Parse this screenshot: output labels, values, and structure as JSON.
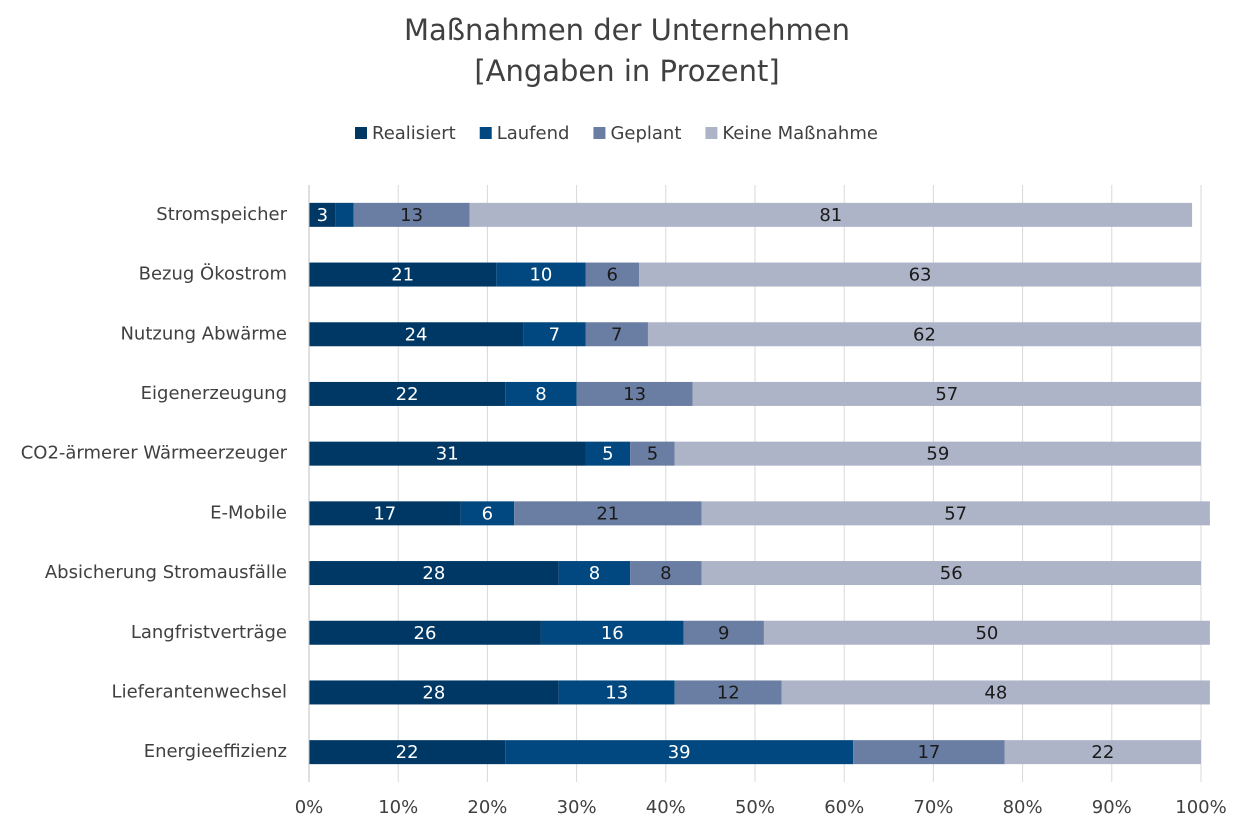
{
  "chart_data": {
    "type": "stacked-bar-horizontal",
    "title": "Maßnahmen der Unternehmen",
    "subtitle": "[Angaben in Prozent]",
    "categories": [
      "Stromspeicher",
      "Bezug Ökostrom",
      "Nutzung Abwärme",
      "Eigenerzeugung",
      "CO2-ärmerer Wärmeerzeuger",
      "E-Mobile",
      "Absicherung Stromausfälle",
      "Langfristverträge",
      "Lieferantenwechsel",
      "Energieeffizienz"
    ],
    "series": [
      {
        "name": "Realisiert",
        "color": "#003865",
        "label_color": "#ffffff",
        "values": [
          3,
          21,
          24,
          22,
          31,
          17,
          28,
          26,
          28,
          22
        ]
      },
      {
        "name": "Laufend",
        "color": "#00487f",
        "label_color": "#ffffff",
        "values": [
          2,
          10,
          7,
          8,
          5,
          6,
          8,
          16,
          13,
          39
        ],
        "value_labels": [
          null,
          "10",
          "7",
          "8",
          "5",
          "6",
          "8",
          "16",
          "13",
          "39"
        ]
      },
      {
        "name": "Geplant",
        "color": "#6a7da2",
        "label_color": "#1a1a1a",
        "values": [
          13,
          6,
          7,
          13,
          5,
          21,
          8,
          9,
          12,
          17
        ]
      },
      {
        "name": "Keine Maßnahme",
        "color": "#adb4c8",
        "label_color": "#1a1a1a",
        "values": [
          81,
          63,
          62,
          57,
          59,
          57,
          56,
          50,
          48,
          22
        ]
      }
    ],
    "xlim": [
      0,
      100
    ],
    "xticks": [
      {
        "value": 0,
        "label": "0%"
      },
      {
        "value": 10,
        "label": "10%"
      },
      {
        "value": 20,
        "label": "20%"
      },
      {
        "value": 30,
        "label": "30%"
      },
      {
        "value": 40,
        "label": "40%"
      },
      {
        "value": 50,
        "label": "50%"
      },
      {
        "value": 60,
        "label": "60%"
      },
      {
        "value": 70,
        "label": "70%"
      },
      {
        "value": 80,
        "label": "80%"
      },
      {
        "value": 90,
        "label": "90%"
      },
      {
        "value": 100,
        "label": "100%"
      }
    ],
    "grid": true,
    "legend": "top"
  }
}
